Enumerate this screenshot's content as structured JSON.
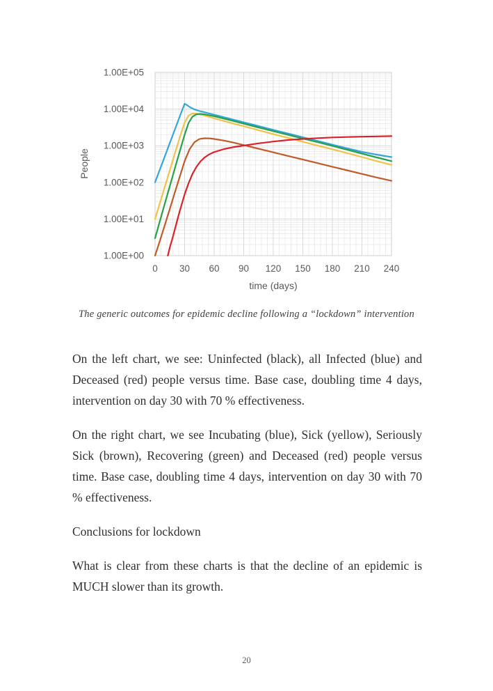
{
  "page": {
    "number": "20"
  },
  "figure": {
    "caption": "The generic outcomes for epidemic decline following a “lockdown” intervention"
  },
  "chart_data": {
    "type": "line",
    "title": "",
    "xlabel": "time (days)",
    "ylabel": "People",
    "x_ticks": [
      0,
      30,
      60,
      90,
      120,
      150,
      180,
      210,
      240
    ],
    "y_ticks": [
      "1.00E+00",
      "1.00E+01",
      "1.00E+02",
      "1.00E+03",
      "1.00E+04",
      "1.00E+05"
    ],
    "xlim": [
      0,
      240
    ],
    "ylim": [
      1,
      100000
    ],
    "y_scale": "log",
    "x_minor_step_days": 6,
    "grid": "major and minor gridlines, light gray, plot area border",
    "legend_position": "none",
    "colors": {
      "major_grid": "#d9d9d9",
      "minor_grid": "#ececec",
      "plot_border": "#cfcfcf",
      "axis_text": "#595959"
    },
    "series": [
      {
        "name": "Incubating",
        "color": "#33a6dc",
        "points": [
          [
            0,
            100
          ],
          [
            5,
            230
          ],
          [
            10,
            520
          ],
          [
            15,
            1200
          ],
          [
            20,
            2700
          ],
          [
            25,
            6200
          ],
          [
            30,
            14000
          ],
          [
            33,
            12500
          ],
          [
            36,
            11000
          ],
          [
            40,
            9800
          ],
          [
            45,
            8900
          ],
          [
            50,
            8200
          ],
          [
            60,
            7000
          ],
          [
            70,
            6000
          ],
          [
            80,
            5100
          ],
          [
            90,
            4350
          ],
          [
            105,
            3450
          ],
          [
            120,
            2700
          ],
          [
            135,
            2150
          ],
          [
            150,
            1700
          ],
          [
            165,
            1350
          ],
          [
            180,
            1070
          ],
          [
            195,
            850
          ],
          [
            210,
            680
          ],
          [
            225,
            570
          ],
          [
            240,
            490
          ]
        ]
      },
      {
        "name": "Sick",
        "color": "#f0c24a",
        "points": [
          [
            0,
            10
          ],
          [
            5,
            28
          ],
          [
            10,
            78
          ],
          [
            15,
            215
          ],
          [
            20,
            600
          ],
          [
            25,
            1650
          ],
          [
            30,
            4300
          ],
          [
            34,
            6600
          ],
          [
            38,
            7600
          ],
          [
            42,
            7500
          ],
          [
            46,
            7100
          ],
          [
            50,
            6700
          ],
          [
            60,
            5600
          ],
          [
            70,
            4700
          ],
          [
            80,
            4000
          ],
          [
            90,
            3400
          ],
          [
            105,
            2650
          ],
          [
            120,
            2080
          ],
          [
            135,
            1630
          ],
          [
            150,
            1280
          ],
          [
            165,
            1010
          ],
          [
            180,
            800
          ],
          [
            195,
            630
          ],
          [
            210,
            490
          ],
          [
            225,
            380
          ],
          [
            240,
            300
          ]
        ]
      },
      {
        "name": "Recovering",
        "color": "#28a04c",
        "points": [
          [
            0,
            3
          ],
          [
            5,
            9
          ],
          [
            10,
            27
          ],
          [
            15,
            80
          ],
          [
            20,
            235
          ],
          [
            25,
            690
          ],
          [
            30,
            2000
          ],
          [
            34,
            4200
          ],
          [
            38,
            6200
          ],
          [
            42,
            7200
          ],
          [
            46,
            7400
          ],
          [
            50,
            7200
          ],
          [
            60,
            6400
          ],
          [
            70,
            5500
          ],
          [
            80,
            4700
          ],
          [
            90,
            4000
          ],
          [
            105,
            3150
          ],
          [
            120,
            2500
          ],
          [
            135,
            1980
          ],
          [
            150,
            1570
          ],
          [
            165,
            1250
          ],
          [
            180,
            990
          ],
          [
            195,
            780
          ],
          [
            210,
            610
          ],
          [
            225,
            480
          ],
          [
            240,
            380
          ]
        ]
      },
      {
        "name": "Seriously Sick",
        "color": "#bf5b28",
        "points": [
          [
            0,
            1
          ],
          [
            5,
            2.6
          ],
          [
            10,
            7
          ],
          [
            15,
            19
          ],
          [
            20,
            52
          ],
          [
            25,
            140
          ],
          [
            30,
            380
          ],
          [
            35,
            800
          ],
          [
            40,
            1250
          ],
          [
            45,
            1520
          ],
          [
            50,
            1600
          ],
          [
            55,
            1590
          ],
          [
            60,
            1530
          ],
          [
            70,
            1380
          ],
          [
            80,
            1210
          ],
          [
            90,
            1040
          ],
          [
            105,
            830
          ],
          [
            120,
            660
          ],
          [
            135,
            525
          ],
          [
            150,
            420
          ],
          [
            165,
            335
          ],
          [
            180,
            267
          ],
          [
            195,
            213
          ],
          [
            210,
            170
          ],
          [
            225,
            136
          ],
          [
            240,
            110
          ]
        ]
      },
      {
        "name": "Deceased",
        "color": "#da2128",
        "points": [
          [
            13,
            1
          ],
          [
            15,
            1.7
          ],
          [
            18,
            3.2
          ],
          [
            21,
            6.5
          ],
          [
            24,
            13
          ],
          [
            27,
            25
          ],
          [
            30,
            47
          ],
          [
            34,
            95
          ],
          [
            38,
            170
          ],
          [
            42,
            265
          ],
          [
            46,
            370
          ],
          [
            50,
            470
          ],
          [
            55,
            580
          ],
          [
            60,
            670
          ],
          [
            70,
            810
          ],
          [
            80,
            920
          ],
          [
            90,
            1010
          ],
          [
            105,
            1160
          ],
          [
            120,
            1300
          ],
          [
            135,
            1430
          ],
          [
            150,
            1530
          ],
          [
            165,
            1610
          ],
          [
            180,
            1680
          ],
          [
            195,
            1730
          ],
          [
            210,
            1770
          ],
          [
            225,
            1800
          ],
          [
            240,
            1830
          ]
        ]
      }
    ]
  },
  "content": {
    "para_left_chart": "On the left chart, we see: Uninfected (black), all Infected (blue) and Deceased (red) people versus time. Base case, doubling time 4 days, intervention on day 30 with 70 % effectiveness.",
    "para_right_chart": "On the right chart, we see Incubating (blue), Sick (yellow), Seriously Sick (brown), Recovering (green) and Deceased (red) people versus time. Base case, doubling time 4 days, intervention on day 30 with 70 % effectiveness.",
    "heading_conclusions": "Conclusions for lockdown",
    "para_conclusion": "What is clear from these charts is that the decline of an epidemic is MUCH slower than its growth."
  }
}
